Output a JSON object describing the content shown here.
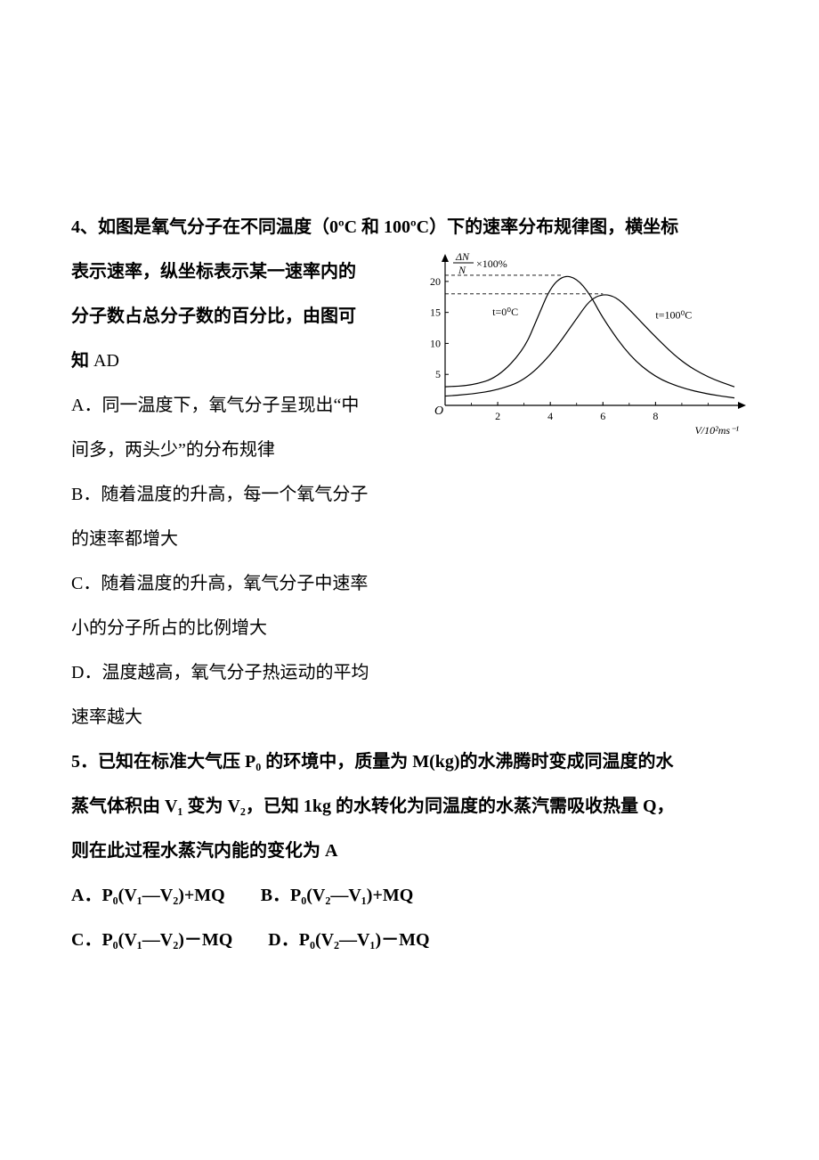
{
  "q4": {
    "number": "4、",
    "stem_line1": "如图是氧气分子在不同温度（0ºC 和 100ºC）下的速率分布规律图，横坐标",
    "stem_line2": "表示速率，纵坐标表示某一速率内的",
    "stem_line3": "分子数占总分子数的百分比，由图可",
    "stem_line4": "知 ",
    "answer": "AD",
    "options": {
      "A": {
        "label": "A．",
        "line1": "同一温度下，氧气分子呈现出“中",
        "line2": "间多，两头少”的分布规律"
      },
      "B": {
        "label": "B．",
        "line1": "随着温度的升高，每一个氧气分子",
        "line2": "的速率都增大"
      },
      "C": {
        "label": "C．",
        "line1": "随着温度的升高，氧气分子中速率",
        "line2": "小的分子所占的比例增大"
      },
      "D": {
        "label": "D．",
        "line1": "温度越高，氧气分子热运动的平均",
        "line2": "速率越大"
      }
    }
  },
  "chart": {
    "type": "line",
    "ylabel_top": "ΔN",
    "ylabel_bottom": "N",
    "ylabel_suffix": "×100%",
    "xlabel": "V/10²ms⁻¹",
    "yticks": [
      5,
      10,
      15,
      20
    ],
    "xticks": [
      2,
      4,
      6,
      8
    ],
    "ylim": [
      0,
      23
    ],
    "xlim": [
      0,
      11
    ],
    "curve0_label": "t=0⁰C",
    "curve100_label": "t=100⁰C",
    "curve0_peak_y": 21,
    "curve100_peak_y": 18,
    "dash_y1": 21,
    "dash_y2": 18,
    "stroke_color": "#000000",
    "stroke_width": 1.2,
    "font_size": 12,
    "background": "#ffffff",
    "curve0": [
      [
        0,
        3
      ],
      [
        1,
        3.2
      ],
      [
        2,
        4.5
      ],
      [
        3,
        9
      ],
      [
        3.5,
        14
      ],
      [
        4,
        19
      ],
      [
        4.5,
        21
      ],
      [
        5,
        20.5
      ],
      [
        5.5,
        18
      ],
      [
        6,
        14
      ],
      [
        7,
        8
      ],
      [
        8,
        4.5
      ],
      [
        9,
        2.8
      ],
      [
        10,
        1.8
      ],
      [
        11,
        1.2
      ]
    ],
    "curve100": [
      [
        0,
        1.5
      ],
      [
        1,
        1.8
      ],
      [
        2,
        2.5
      ],
      [
        3,
        4
      ],
      [
        4,
        8
      ],
      [
        5,
        14
      ],
      [
        5.5,
        17
      ],
      [
        6,
        18
      ],
      [
        6.5,
        17.5
      ],
      [
        7,
        15.5
      ],
      [
        8,
        11
      ],
      [
        9,
        7
      ],
      [
        10,
        4.5
      ],
      [
        11,
        3
      ]
    ]
  },
  "q5": {
    "number": "5．",
    "stem_line1": "已知在标准大气压 P₀ 的环境中，质量为 M(kg)的水沸腾时变成同温度的水",
    "stem_line2": "蒸气体积由 V₁ 变为 V₂，已知 1kg 的水转化为同温度的水蒸汽需吸收热量 Q，",
    "stem_line3": "则在此过程水蒸汽内能的变化为  ",
    "answer": "A",
    "A": "A．P₀(V₁—V₂)+MQ",
    "B": "B．P₀(V₂—V₁)+MQ",
    "C": "C．P₀(V₁—V₂)－MQ",
    "D": "D．P₀(V₂—V₁)－MQ"
  }
}
